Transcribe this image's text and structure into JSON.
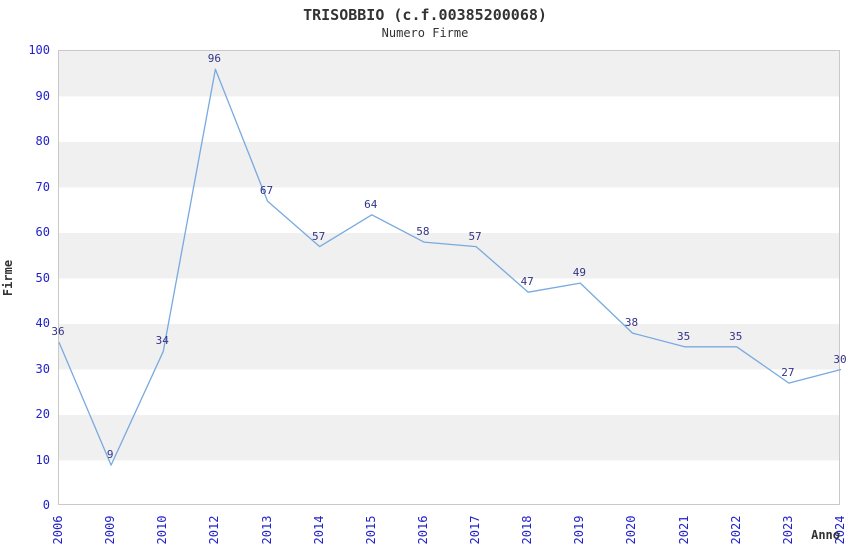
{
  "header": {
    "title": "TRISOBBIO (c.f.00385200068)",
    "subtitle": "Numero Firme"
  },
  "chart_data": {
    "type": "line",
    "title": "TRISOBBIO (c.f.00385200068)",
    "subtitle": "Numero Firme",
    "xlabel": "Anno",
    "ylabel": "Firme",
    "categories": [
      "2006",
      "2009",
      "2010",
      "2012",
      "2013",
      "2014",
      "2015",
      "2016",
      "2017",
      "2018",
      "2019",
      "2020",
      "2021",
      "2022",
      "2023",
      "2024"
    ],
    "values": [
      36,
      9,
      34,
      96,
      67,
      57,
      64,
      58,
      57,
      47,
      49,
      38,
      35,
      35,
      27,
      30
    ],
    "ylim": [
      0,
      100
    ],
    "ytick_step": 10,
    "grid": "alternating-horizontal-bands",
    "legend": "none",
    "data_labels": true,
    "colors": {
      "line": "#78aadf",
      "tick_labels": "#2222cc",
      "data_labels": "#333388",
      "band_gray": "#f0f0f0",
      "band_white": "#ffffff",
      "plot_border": "#c9c9c9",
      "title_text": "#333333"
    }
  }
}
